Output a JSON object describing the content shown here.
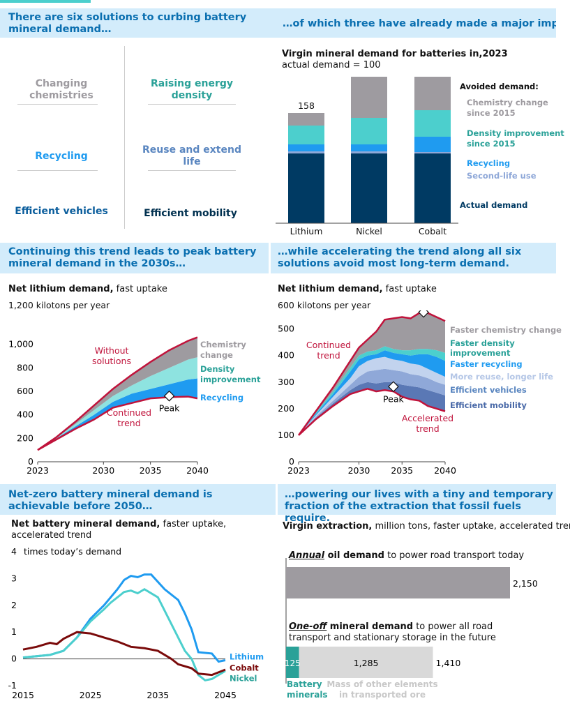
{
  "banners": {
    "b1": "There are six solutions to curbing battery mineral demand…",
    "b2": "…of which three have already made a major impact",
    "b3": "Continuing this trend leads to peak battery mineral demand in the 2030s…",
    "b4": "…while accelerating the trend along all six solutions avoid most long-term demand.",
    "b5": "Net-zero battery mineral demand is achievable before 2050…",
    "b6": "…powering our lives with a tiny and temporary fraction of the extraction that fossil fuels require."
  },
  "solutions": {
    "changing_chemistries": "Changing chemistries",
    "raising_density": "Raising energy density",
    "recycling": "Recycling",
    "reuse": "Reuse and extend life",
    "efficient_vehicles": "Efficient vehicles",
    "efficient_mobility": "Efficient mobility"
  },
  "colors": {
    "actual": "#003a63",
    "second_life": "#8fa8d8",
    "recycling": "#1f9bf0",
    "density": "#4ccfcd",
    "chemistry": "#9e9ba0",
    "red": "#c0133b",
    "banner_bg": "#d3ecfb",
    "banner_text": "#0a6fb0",
    "teal": "#2aa198",
    "gray_text": "#9e9ba0",
    "dark_red": "#7a0a0a"
  },
  "chart_data": [
    {
      "type": "bar",
      "title_bold": "Virgin mineral demand for batteries in",
      "title_year": "2023",
      "subtitle": "actual demand = 100",
      "categories": [
        "Lithium",
        "Nickel",
        "Cobalt"
      ],
      "totals": [
        "158",
        "227",
        "238"
      ],
      "legend_title": "Avoided demand:",
      "series": [
        {
          "name": "Actual demand",
          "values": [
            100,
            100,
            100
          ]
        },
        {
          "name": "Second-life use",
          "values": [
            3,
            3,
            2
          ]
        },
        {
          "name": "Recycling",
          "values": [
            10,
            10,
            22
          ]
        },
        {
          "name": "Density improvement since 2015",
          "values": [
            27,
            38,
            38
          ]
        },
        {
          "name": "Chemistry change since 2015",
          "values": [
            18,
            76,
            76
          ]
        }
      ],
      "legend_labels": {
        "chemistry": "Chemistry change since 2015",
        "density": "Density improvement since 2015",
        "recycling": "Recycling",
        "second_life": "Second-life use",
        "actual": "Actual demand"
      }
    },
    {
      "type": "area",
      "title_bold": "Net lithium demand,",
      "title_rest": " fast uptake",
      "y_unit": "kilotons per year",
      "ylim": [
        0,
        1200
      ],
      "y_ticks": [
        "1,200",
        "1,000",
        "800",
        "600",
        "400",
        "200",
        "0"
      ],
      "x_ticks": [
        "2023",
        "2030",
        "2035",
        "2040"
      ],
      "x": [
        2023,
        2025,
        2027,
        2029,
        2031,
        2033,
        2035,
        2037,
        2039,
        2040
      ],
      "series": [
        {
          "name": "Continued trend",
          "values": [
            100,
            190,
            280,
            360,
            460,
            500,
            540,
            550,
            555,
            540
          ]
        },
        {
          "name": "Recycling",
          "values": [
            100,
            200,
            300,
            400,
            510,
            580,
            620,
            660,
            700,
            710
          ]
        },
        {
          "name": "Density improvement",
          "values": [
            100,
            205,
            320,
            440,
            560,
            650,
            730,
            800,
            870,
            890
          ]
        },
        {
          "name": "Chemistry change",
          "values": [
            100,
            210,
            340,
            480,
            620,
            740,
            850,
            950,
            1030,
            1060
          ]
        }
      ],
      "peak": {
        "x": 2037,
        "y": 560,
        "label": "Peak"
      },
      "labels": {
        "without": "Without solutions",
        "continued": "Continued trend",
        "chemistry": "Chemistry change",
        "density": "Density improvement",
        "recycling": "Recycling"
      }
    },
    {
      "type": "area",
      "title_bold": "Net lithium demand,",
      "title_rest": " fast uptake",
      "y_unit": "kilotons per year",
      "ylim": [
        0,
        600
      ],
      "y_ticks": [
        "600",
        "500",
        "400",
        "300",
        "200",
        "100",
        "0"
      ],
      "x_ticks": [
        "2023",
        "2030",
        "2035",
        "2040"
      ],
      "x": [
        2023,
        2025,
        2027,
        2029,
        2030,
        2031,
        2032,
        2033,
        2034,
        2035,
        2036,
        2037,
        2038,
        2039,
        2040
      ],
      "series": [
        {
          "name": "Accelerated trend",
          "values": [
            100,
            160,
            210,
            255,
            265,
            275,
            265,
            270,
            265,
            245,
            235,
            230,
            210,
            200,
            190
          ]
        },
        {
          "name": "Efficient mobility",
          "values": [
            100,
            165,
            220,
            270,
            290,
            300,
            295,
            300,
            300,
            290,
            285,
            280,
            270,
            260,
            250
          ]
        },
        {
          "name": "Efficient vehicles",
          "values": [
            100,
            170,
            230,
            290,
            320,
            340,
            345,
            350,
            345,
            340,
            330,
            325,
            315,
            300,
            290
          ]
        },
        {
          "name": "More reuse, longer life",
          "values": [
            100,
            175,
            245,
            315,
            360,
            380,
            390,
            395,
            385,
            380,
            370,
            365,
            350,
            335,
            320
          ]
        },
        {
          "name": "Faster recycling",
          "values": [
            100,
            180,
            255,
            340,
            385,
            400,
            405,
            420,
            410,
            405,
            400,
            405,
            405,
            395,
            380
          ]
        },
        {
          "name": "Faster density improvement",
          "values": [
            100,
            185,
            265,
            355,
            400,
            415,
            420,
            435,
            425,
            420,
            420,
            425,
            425,
            420,
            410
          ]
        },
        {
          "name": "Faster chemistry change",
          "values": [
            100,
            190,
            280,
            380,
            430,
            460,
            490,
            535,
            540,
            545,
            540,
            560,
            560,
            545,
            530
          ]
        }
      ],
      "peak": {
        "x": 2037.5,
        "y": 563,
        "label": "Peak"
      },
      "peak2": {
        "x": 2034,
        "y": 283,
        "label": "Peak"
      },
      "labels": {
        "continued": "Continued trend",
        "accelerated": "Accelerated trend",
        "chemistry": "Faster chemistry change",
        "density": "Faster density improvement",
        "recycling": "Faster recycling",
        "reuse": "More reuse, longer life",
        "vehicles": "Efficient vehicles",
        "mobility": "Efficient mobility"
      }
    },
    {
      "type": "line",
      "title_bold": "Net battery mineral demand,",
      "title_rest": " faster uptake, accelerated trend",
      "y_unit": "times today’s demand",
      "ylim": [
        -1,
        4
      ],
      "y_ticks": [
        "4",
        "3",
        "2",
        "1",
        "0",
        "-1"
      ],
      "x_ticks": [
        "2015",
        "2025",
        "2035",
        "2045"
      ],
      "series": [
        {
          "name": "Lithium",
          "x": [
            2015,
            2017,
            2019,
            2021,
            2023,
            2025,
            2027,
            2029,
            2030,
            2031,
            2032,
            2033,
            2034,
            2036,
            2038,
            2039,
            2040,
            2041,
            2043,
            2044,
            2045
          ],
          "values": [
            0.05,
            0.1,
            0.15,
            0.3,
            0.8,
            1.5,
            2.0,
            2.6,
            2.95,
            3.1,
            3.05,
            3.15,
            3.15,
            2.6,
            2.2,
            1.7,
            1.1,
            0.25,
            0.2,
            -0.1,
            -0.05
          ]
        },
        {
          "name": "Cobalt",
          "x": [
            2015,
            2017,
            2019,
            2020,
            2021,
            2023,
            2025,
            2027,
            2029,
            2031,
            2033,
            2035,
            2037,
            2038,
            2040,
            2041,
            2043,
            2045
          ],
          "values": [
            0.35,
            0.45,
            0.6,
            0.55,
            0.75,
            1.0,
            0.95,
            0.8,
            0.65,
            0.45,
            0.4,
            0.3,
            0.0,
            -0.2,
            -0.35,
            -0.55,
            -0.6,
            -0.4
          ]
        },
        {
          "name": "Nickel",
          "x": [
            2015,
            2017,
            2019,
            2021,
            2023,
            2025,
            2027,
            2028,
            2029,
            2030,
            2031,
            2032,
            2033,
            2035,
            2037,
            2039,
            2040,
            2041,
            2042,
            2043,
            2045
          ],
          "values": [
            0.05,
            0.1,
            0.15,
            0.3,
            0.8,
            1.4,
            1.85,
            2.1,
            2.3,
            2.5,
            2.55,
            2.45,
            2.6,
            2.3,
            1.3,
            0.3,
            0.0,
            -0.6,
            -0.8,
            -0.75,
            -0.45
          ]
        }
      ]
    },
    {
      "type": "bar",
      "title_bold": "Virgin extraction,",
      "title_rest": " million tons, faster uptake, accelerated trend",
      "oil_label_em": "Annual",
      "oil_label_bold": " oil demand",
      "oil_label_rest": " to power road transport today",
      "oil_value": 2150,
      "oil_value_label": "2,150",
      "mineral_label_em": "One-off",
      "mineral_label_bold": " mineral demand",
      "mineral_label_rest": " to power all road transport and stationary storage in the future",
      "battery_value": 125,
      "other_value": 1285,
      "total_value": 1410,
      "battery_label": "125",
      "other_label": "1,285",
      "total_label": "1,410",
      "battery_caption": "Battery minerals",
      "other_caption": "Mass of other elements in transported ore"
    }
  ]
}
